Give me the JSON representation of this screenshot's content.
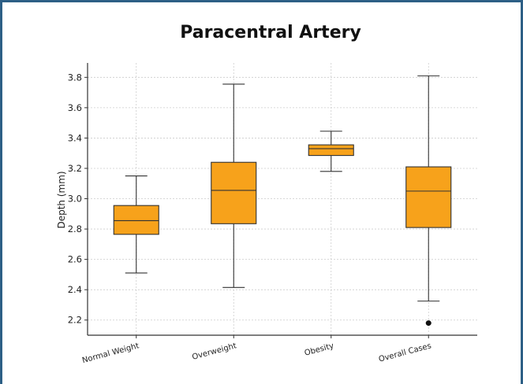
{
  "chart_data": {
    "type": "boxplot",
    "title": "Paracentral Artery",
    "xlabel": "",
    "ylabel": "Depth (mm)",
    "ylim": [
      2.1,
      3.895
    ],
    "yticks": [
      2.2,
      2.4,
      2.6,
      2.8,
      3.0,
      3.2,
      3.4,
      3.6,
      3.8
    ],
    "ytick_labels": [
      "2.2",
      "2.4",
      "2.6",
      "2.8",
      "3.0",
      "3.2",
      "3.4",
      "3.6",
      "3.8"
    ],
    "categories": [
      "Normal Weight",
      "Overweight",
      "Obesity",
      "Overall Cases"
    ],
    "grid": true,
    "box_color": "#f7a21b",
    "edge_color": "#333333",
    "boxes": [
      {
        "whisker_low": 2.51,
        "q1": 2.765,
        "median": 2.855,
        "q3": 2.955,
        "whisker_high": 3.15,
        "outliers": []
      },
      {
        "whisker_low": 2.415,
        "q1": 2.835,
        "median": 3.055,
        "q3": 3.24,
        "whisker_high": 3.755,
        "outliers": []
      },
      {
        "whisker_low": 3.18,
        "q1": 3.285,
        "median": 3.33,
        "q3": 3.355,
        "whisker_high": 3.445,
        "outliers": []
      },
      {
        "whisker_low": 2.325,
        "q1": 2.81,
        "median": 3.05,
        "q3": 3.21,
        "whisker_high": 3.81,
        "outliers": [
          2.18
        ]
      }
    ]
  }
}
